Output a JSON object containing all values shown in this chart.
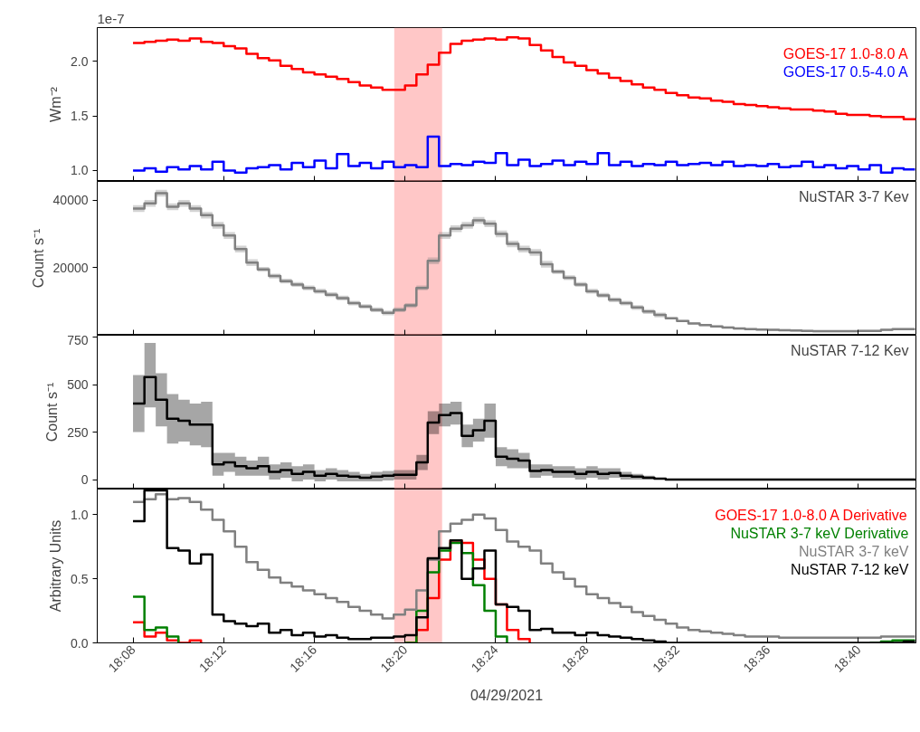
{
  "chart_data": [
    {
      "type": "step",
      "ylabel": "Wm⁻²",
      "annotations": [
        "1e-7"
      ],
      "legend": "top right",
      "tick_labels": "y",
      "x": [
        18.1333,
        18.1417,
        18.15,
        18.1583,
        18.1667,
        18.175,
        18.1833,
        18.1917,
        18.2,
        18.2083,
        18.2167,
        18.225,
        18.2333,
        18.2417,
        18.25,
        18.2583,
        18.2667,
        18.275,
        18.2833,
        18.2917,
        18.3,
        18.3083,
        18.3167,
        18.325,
        18.3333,
        18.3417,
        18.35,
        18.3583,
        18.3667,
        18.375,
        18.3833,
        18.3917,
        18.4,
        18.4083,
        18.4167,
        18.425,
        18.4333,
        18.4417,
        18.45,
        18.4583,
        18.4667,
        18.475,
        18.4833,
        18.4917,
        18.5,
        18.5083,
        18.5167,
        18.525,
        18.5333,
        18.5417,
        18.55,
        18.5583,
        18.5667,
        18.575,
        18.5833,
        18.5917,
        18.6,
        18.6083,
        18.6167,
        18.625,
        18.6333,
        18.6417,
        18.65,
        18.6583,
        18.6667,
        18.675,
        18.6833,
        18.6917,
        18.7,
        18.7083
      ],
      "xlim": [
        18.107,
        18.709
      ],
      "xticks": [
        {
          "value": 18.1333,
          "label": null
        },
        {
          "value": 18.2,
          "label": null
        },
        {
          "value": 18.2667,
          "label": null
        },
        {
          "value": 18.3333,
          "label": null
        },
        {
          "value": 18.4,
          "label": null
        },
        {
          "value": 18.4667,
          "label": null
        },
        {
          "value": 18.5333,
          "label": null
        },
        {
          "value": 18.6,
          "label": null
        },
        {
          "value": 18.6667,
          "label": null
        }
      ],
      "ylim": [
        0.9,
        2.31
      ],
      "yticks": [
        {
          "value": 1.0,
          "label": "1.0"
        },
        1.5,
        {
          "value": 2.0,
          "label": "2.0"
        }
      ],
      "bands": [
        {
          "axis": "x",
          "from": 18.3254,
          "to": 18.3606,
          "color": "#ff9999"
        }
      ],
      "series": [
        {
          "name": "GOES-17 1.0-8.0 A",
          "color": "#ff0000",
          "values": [
            2.17,
            2.18,
            2.19,
            2.2,
            2.19,
            2.21,
            2.18,
            2.17,
            2.14,
            2.12,
            2.07,
            2.03,
            2.01,
            1.96,
            1.93,
            1.9,
            1.88,
            1.86,
            1.84,
            1.81,
            1.78,
            1.76,
            1.74,
            1.74,
            1.78,
            1.88,
            1.97,
            2.08,
            2.16,
            2.19,
            2.2,
            2.21,
            2.2,
            2.22,
            2.21,
            2.15,
            2.1,
            2.04,
            1.99,
            1.96,
            1.92,
            1.89,
            1.85,
            1.82,
            1.79,
            1.76,
            1.74,
            1.71,
            1.69,
            1.67,
            1.66,
            1.64,
            1.63,
            1.61,
            1.6,
            1.59,
            1.58,
            1.57,
            1.56,
            1.56,
            1.55,
            1.54,
            1.52,
            1.51,
            1.51,
            1.5,
            1.49,
            1.49,
            1.47,
            1.48
          ]
        },
        {
          "name": "GOES-17 0.5-4.0 A",
          "color": "#0000ff",
          "values": [
            1.0,
            1.02,
            0.99,
            1.03,
            1.01,
            1.04,
            1.01,
            1.08,
            1.0,
            0.98,
            1.02,
            1.03,
            1.05,
            1.01,
            1.07,
            1.03,
            1.09,
            1.02,
            1.15,
            1.04,
            1.07,
            1.02,
            1.08,
            1.03,
            1.05,
            1.03,
            1.31,
            1.04,
            1.06,
            1.05,
            1.08,
            1.07,
            1.16,
            1.05,
            1.1,
            1.04,
            1.06,
            1.09,
            1.05,
            1.08,
            1.06,
            1.16,
            1.05,
            1.08,
            1.04,
            1.06,
            1.05,
            1.08,
            1.05,
            1.06,
            1.07,
            1.05,
            1.08,
            1.04,
            1.05,
            1.04,
            1.06,
            1.03,
            1.04,
            1.08,
            1.03,
            1.05,
            1.02,
            1.04,
            1.01,
            1.05,
            0.98,
            1.02,
            1.01,
            1.01
          ]
        }
      ]
    },
    {
      "type": "step",
      "ylabel": "Count s⁻¹",
      "annotations": [
        "NuSTAR 3-7 Kev"
      ],
      "tick_labels": "y",
      "x": [
        18.1333,
        18.1417,
        18.15,
        18.1583,
        18.1667,
        18.175,
        18.1833,
        18.1917,
        18.2,
        18.2083,
        18.2167,
        18.225,
        18.2333,
        18.2417,
        18.25,
        18.2583,
        18.2667,
        18.275,
        18.2833,
        18.2917,
        18.3,
        18.3083,
        18.3167,
        18.325,
        18.3333,
        18.3417,
        18.35,
        18.3583,
        18.3667,
        18.375,
        18.3833,
        18.3917,
        18.4,
        18.4083,
        18.4167,
        18.425,
        18.4333,
        18.4417,
        18.45,
        18.4583,
        18.4667,
        18.475,
        18.4833,
        18.4917,
        18.5,
        18.5083,
        18.5167,
        18.525,
        18.5333,
        18.5417,
        18.55,
        18.5583,
        18.5667,
        18.575,
        18.5833,
        18.5917,
        18.6,
        18.6083,
        18.6167,
        18.625,
        18.6333,
        18.6417,
        18.65,
        18.6583,
        18.6667,
        18.675,
        18.6833,
        18.6917,
        18.7,
        18.7083
      ],
      "xlim": [
        18.107,
        18.709
      ],
      "xticks": [
        {
          "value": 18.1333,
          "label": null
        },
        {
          "value": 18.2,
          "label": null
        },
        {
          "value": 18.2667,
          "label": null
        },
        {
          "value": 18.3333,
          "label": null
        },
        {
          "value": 18.4,
          "label": null
        },
        {
          "value": 18.4667,
          "label": null
        },
        {
          "value": 18.5333,
          "label": null
        },
        {
          "value": 18.6,
          "label": null
        },
        {
          "value": 18.6667,
          "label": null
        }
      ],
      "ylim": [
        0,
        45500
      ],
      "yticks": [
        20000,
        40000
      ],
      "bands": [
        {
          "axis": "x",
          "from": 18.3254,
          "to": 18.3606,
          "color": "#ff9999"
        }
      ],
      "series": [
        {
          "color": "#808080",
          "values": [
            37500,
            39000,
            42000,
            38000,
            39000,
            37500,
            35500,
            32500,
            29500,
            25500,
            21500,
            19500,
            17500,
            16000,
            15000,
            14000,
            13000,
            12000,
            11000,
            9500,
            8500,
            7500,
            6600,
            7500,
            8800,
            14000,
            22000,
            29500,
            31500,
            32500,
            34000,
            33000,
            30000,
            27000,
            25500,
            24500,
            21000,
            18800,
            17000,
            15000,
            13000,
            11800,
            10500,
            9500,
            8200,
            7000,
            6000,
            5000,
            4200,
            3500,
            3000,
            2600,
            2300,
            2000,
            1800,
            1700,
            1600,
            1500,
            1400,
            1300,
            1200,
            1200,
            1200,
            1200,
            1300,
            1300,
            1600,
            1800,
            1800,
            1800
          ],
          "lower": [
            36500,
            38000,
            41000,
            37000,
            38000,
            36500,
            34500,
            31500,
            28500,
            24500,
            20500,
            18800,
            16800,
            15300,
            14300,
            13300,
            12300,
            11300,
            10300,
            8800,
            7800,
            6800,
            5900,
            6800,
            8100,
            13300,
            21000,
            28500,
            30500,
            31500,
            33000,
            32000,
            29000,
            26000,
            24500,
            23500,
            20000,
            18100,
            16300,
            14300,
            12300,
            11100,
            9800,
            8800,
            7500,
            6300,
            5300,
            4700,
            3900,
            3200,
            2700,
            2300,
            2000,
            1700,
            1500,
            1400,
            1300,
            1200,
            1100,
            1000,
            900,
            900,
            900,
            900,
            1000,
            1000,
            1300,
            1500,
            1500,
            1500
          ],
          "upper": [
            38500,
            40000,
            43000,
            39000,
            40000,
            38500,
            36500,
            33500,
            30500,
            26500,
            22500,
            20200,
            18200,
            16700,
            15700,
            14700,
            13700,
            12700,
            11700,
            10200,
            9200,
            8200,
            7300,
            8200,
            9500,
            14700,
            23000,
            30500,
            32500,
            33500,
            35000,
            34000,
            31000,
            28000,
            26500,
            25500,
            22000,
            19500,
            17700,
            15700,
            13700,
            12500,
            11200,
            10200,
            8900,
            7700,
            6700,
            5300,
            4500,
            3800,
            3300,
            2900,
            2600,
            2300,
            2100,
            2000,
            1900,
            1800,
            1700,
            1600,
            1500,
            1500,
            1500,
            1500,
            1600,
            1600,
            1900,
            2100,
            2100,
            2100
          ]
        }
      ]
    },
    {
      "type": "step",
      "ylabel": "Count s⁻¹",
      "annotations": [
        "NuSTAR 7-12 Kev"
      ],
      "tick_labels": "y",
      "x": [
        18.1333,
        18.1417,
        18.15,
        18.1583,
        18.1667,
        18.175,
        18.1833,
        18.1917,
        18.2,
        18.2083,
        18.2167,
        18.225,
        18.2333,
        18.2417,
        18.25,
        18.2583,
        18.2667,
        18.275,
        18.2833,
        18.2917,
        18.3,
        18.3083,
        18.3167,
        18.325,
        18.3333,
        18.3417,
        18.35,
        18.3583,
        18.3667,
        18.375,
        18.3833,
        18.3917,
        18.4,
        18.4083,
        18.4167,
        18.425,
        18.4333,
        18.4417,
        18.45,
        18.4583,
        18.4667,
        18.475,
        18.4833,
        18.4917,
        18.5,
        18.5083,
        18.5167,
        18.525,
        18.5333,
        18.5417,
        18.55,
        18.5583,
        18.5667,
        18.575,
        18.5833,
        18.5917,
        18.6,
        18.6083,
        18.6167,
        18.625,
        18.6333,
        18.6417,
        18.65,
        18.6583,
        18.6667,
        18.675,
        18.6833,
        18.6917,
        18.7,
        18.7083
      ],
      "xlim": [
        18.107,
        18.709
      ],
      "xticks": [
        {
          "value": 18.1333,
          "label": null
        },
        {
          "value": 18.2,
          "label": null
        },
        {
          "value": 18.2667,
          "label": null
        },
        {
          "value": 18.3333,
          "label": null
        },
        {
          "value": 18.4,
          "label": null
        },
        {
          "value": 18.4667,
          "label": null
        },
        {
          "value": 18.5333,
          "label": null
        },
        {
          "value": 18.6,
          "label": null
        },
        {
          "value": 18.6667,
          "label": null
        }
      ],
      "ylim": [
        -50,
        760
      ],
      "yticks": [
        0,
        250,
        500,
        750
      ],
      "bands": [
        {
          "axis": "x",
          "from": 18.3254,
          "to": 18.3606,
          "color": "#ff9999"
        }
      ],
      "series": [
        {
          "color": "#000000",
          "values": [
            400,
            540,
            420,
            320,
            310,
            290,
            290,
            80,
            90,
            70,
            60,
            70,
            40,
            50,
            30,
            40,
            20,
            30,
            20,
            15,
            10,
            15,
            20,
            25,
            25,
            90,
            300,
            340,
            350,
            230,
            260,
            310,
            120,
            110,
            100,
            45,
            50,
            40,
            40,
            30,
            40,
            30,
            35,
            20,
            15,
            10,
            5,
            0,
            0,
            0,
            0,
            0,
            0,
            0,
            0,
            0,
            0,
            0,
            0,
            0,
            0,
            0,
            0,
            0,
            0,
            0,
            0,
            0,
            0,
            5
          ],
          "lower": [
            250,
            380,
            280,
            190,
            200,
            180,
            170,
            20,
            40,
            20,
            20,
            20,
            0,
            10,
            -10,
            0,
            -10,
            0,
            -10,
            -10,
            -10,
            -10,
            -5,
            0,
            0,
            50,
            240,
            280,
            290,
            170,
            200,
            220,
            70,
            60,
            60,
            10,
            20,
            10,
            10,
            0,
            10,
            0,
            10,
            0,
            0,
            0,
            0,
            0,
            0,
            0,
            0,
            0,
            0,
            0,
            0,
            0,
            0,
            0,
            0,
            0,
            0,
            0,
            0,
            0,
            0,
            0,
            0,
            0,
            0,
            0
          ],
          "upper": [
            550,
            720,
            560,
            450,
            420,
            400,
            410,
            140,
            140,
            120,
            100,
            120,
            80,
            90,
            70,
            80,
            50,
            60,
            50,
            40,
            30,
            40,
            45,
            50,
            50,
            130,
            360,
            400,
            410,
            290,
            320,
            400,
            170,
            160,
            140,
            80,
            80,
            70,
            70,
            60,
            70,
            60,
            60,
            40,
            30,
            20,
            10,
            5,
            5,
            5,
            5,
            5,
            5,
            5,
            5,
            5,
            5,
            5,
            5,
            5,
            5,
            5,
            5,
            5,
            5,
            5,
            5,
            5,
            5,
            10
          ]
        }
      ]
    },
    {
      "type": "step",
      "ylabel": "Arbitrary Units",
      "xlabel": "04/29/2021",
      "legend": "top right",
      "x": [
        18.1333,
        18.1417,
        18.15,
        18.1583,
        18.1667,
        18.175,
        18.1833,
        18.1917,
        18.2,
        18.2083,
        18.2167,
        18.225,
        18.2333,
        18.2417,
        18.25,
        18.2583,
        18.2667,
        18.275,
        18.2833,
        18.2917,
        18.3,
        18.3083,
        18.3167,
        18.325,
        18.3333,
        18.3417,
        18.35,
        18.3583,
        18.3667,
        18.375,
        18.3833,
        18.3917,
        18.4,
        18.4083,
        18.4167,
        18.425,
        18.4333,
        18.4417,
        18.45,
        18.4583,
        18.4667,
        18.475,
        18.4833,
        18.4917,
        18.5,
        18.5083,
        18.5167,
        18.525,
        18.5333,
        18.5417,
        18.55,
        18.5583,
        18.5667,
        18.575,
        18.5833,
        18.5917,
        18.6,
        18.6083,
        18.6167,
        18.625,
        18.6333,
        18.6417,
        18.65,
        18.6583,
        18.6667,
        18.675,
        18.6833,
        18.6917,
        18.7,
        18.7083
      ],
      "xlim": [
        18.107,
        18.709
      ],
      "xticks": [
        {
          "value": 18.1333,
          "label": "18:08"
        },
        {
          "value": 18.2,
          "label": "18:12"
        },
        {
          "value": 18.2667,
          "label": "18:16"
        },
        {
          "value": 18.3333,
          "label": "18:20"
        },
        {
          "value": 18.4,
          "label": "18:24"
        },
        {
          "value": 18.4667,
          "label": "18:28"
        },
        {
          "value": 18.5333,
          "label": "18:32"
        },
        {
          "value": 18.6,
          "label": "18:36"
        },
        {
          "value": 18.6667,
          "label": "18:40"
        }
      ],
      "ylim": [
        0,
        1.2
      ],
      "yticks": [
        {
          "value": 0,
          "label": "0.0"
        },
        0.5,
        {
          "value": 1,
          "label": "1.0"
        }
      ],
      "bands": [
        {
          "axis": "x",
          "from": 18.3254,
          "to": 18.3606,
          "color": "#ff9999"
        }
      ],
      "series": [
        {
          "name": "GOES-17 1.0-8.0 A Derivative",
          "color": "#ff0000",
          "values": [
            0.16,
            0.05,
            0.08,
            0.02,
            0.0,
            0.02,
            0.0,
            null,
            null,
            null,
            null,
            null,
            null,
            null,
            null,
            null,
            null,
            null,
            null,
            null,
            null,
            null,
            null,
            null,
            0.0,
            0.1,
            0.35,
            0.65,
            0.8,
            0.78,
            0.65,
            0.5,
            0.3,
            0.1,
            0.03,
            0.0,
            null,
            null,
            null,
            null,
            null,
            null,
            null,
            null,
            null,
            null,
            null,
            null,
            null,
            null,
            null,
            null,
            null,
            null,
            null,
            null,
            null,
            null,
            null,
            null,
            null,
            null,
            null,
            null,
            null,
            null,
            null,
            null,
            null,
            null
          ]
        },
        {
          "name": "NuSTAR 3-7 keV Derivative",
          "color": "#008000",
          "values": [
            0.36,
            0.1,
            0.12,
            0.05,
            0.0,
            null,
            null,
            null,
            null,
            null,
            null,
            null,
            null,
            null,
            null,
            null,
            null,
            null,
            null,
            null,
            null,
            null,
            null,
            null,
            0.0,
            0.25,
            0.55,
            0.72,
            0.78,
            0.7,
            0.45,
            0.25,
            0.05,
            0.0,
            null,
            null,
            null,
            null,
            null,
            null,
            null,
            null,
            null,
            null,
            null,
            null,
            null,
            null,
            null,
            null,
            null,
            null,
            null,
            null,
            null,
            null,
            null,
            null,
            null,
            null,
            null,
            null,
            null,
            null,
            null,
            0.0,
            0.01,
            0.02,
            0.02,
            0.02
          ]
        },
        {
          "name": "NuSTAR 3-7 keV",
          "color": "#808080",
          "values": [
            1.1,
            1.12,
            1.16,
            1.12,
            1.13,
            1.1,
            1.04,
            0.96,
            0.87,
            0.75,
            0.63,
            0.57,
            0.51,
            0.47,
            0.44,
            0.41,
            0.38,
            0.35,
            0.32,
            0.28,
            0.25,
            0.22,
            0.19,
            0.22,
            0.26,
            0.41,
            0.65,
            0.87,
            0.93,
            0.96,
            1.0,
            0.97,
            0.88,
            0.79,
            0.75,
            0.72,
            0.62,
            0.55,
            0.5,
            0.44,
            0.38,
            0.35,
            0.31,
            0.28,
            0.24,
            0.21,
            0.18,
            0.15,
            0.12,
            0.1,
            0.09,
            0.08,
            0.07,
            0.06,
            0.05,
            0.05,
            0.05,
            0.04,
            0.04,
            0.04,
            0.04,
            0.04,
            0.04,
            0.04,
            0.04,
            0.04,
            0.05,
            0.05,
            0.05,
            0.05
          ]
        },
        {
          "name": "NuSTAR 7-12 keV",
          "color": "#000000",
          "values": [
            0.95,
            1.19,
            1.19,
            0.74,
            0.72,
            0.62,
            0.69,
            0.22,
            0.17,
            0.15,
            0.13,
            0.15,
            0.08,
            0.1,
            0.06,
            0.08,
            0.05,
            0.06,
            0.04,
            0.03,
            0.03,
            0.04,
            0.04,
            0.05,
            0.06,
            0.2,
            0.66,
            0.74,
            0.8,
            0.5,
            0.58,
            0.72,
            0.3,
            0.28,
            0.25,
            0.1,
            0.11,
            0.08,
            0.08,
            0.06,
            0.08,
            0.06,
            0.05,
            0.04,
            0.03,
            0.02,
            0.01,
            0,
            0,
            0,
            0,
            0,
            0,
            0,
            0,
            0,
            0,
            0,
            0,
            0,
            0,
            0,
            0,
            0,
            0,
            0,
            0,
            0,
            0.01,
            0.01
          ]
        }
      ]
    }
  ]
}
